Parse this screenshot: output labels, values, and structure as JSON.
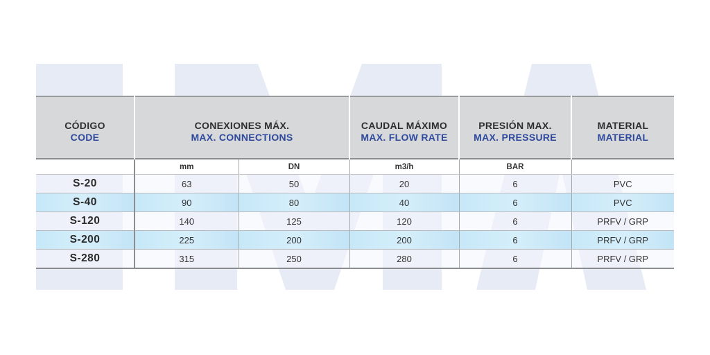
{
  "watermark": {
    "color": "#e6ebf5"
  },
  "header": {
    "codigo": {
      "es": "CÓDIGO",
      "en": "CODE"
    },
    "conexiones": {
      "es": "CONEXIONES MÁX.",
      "en": "MAX. CONNECTIONS"
    },
    "caudal": {
      "es": "CAUDAL MÁXIMO",
      "en": "MAX. FLOW RATE"
    },
    "presion": {
      "es": "PRESIÓN MAX.",
      "en": "MAX. PRESSURE"
    },
    "material": {
      "es": "MATERIAL",
      "en": "MATERIAL"
    }
  },
  "units": {
    "codigo": "",
    "mm": "mm",
    "dn": "DN",
    "flow": "m3/h",
    "pressure": "BAR",
    "material": ""
  },
  "rows": [
    {
      "code": "S-20",
      "mm": "63",
      "dn": "50",
      "flow": "20",
      "pressure": "6",
      "material": "PVC"
    },
    {
      "code": "S-40",
      "mm": "90",
      "dn": "80",
      "flow": "40",
      "pressure": "6",
      "material": "PVC"
    },
    {
      "code": "S-120",
      "mm": "140",
      "dn": "125",
      "flow": "120",
      "pressure": "6",
      "material": "PRFV / GRP"
    },
    {
      "code": "S-200",
      "mm": "225",
      "dn": "200",
      "flow": "200",
      "pressure": "6",
      "material": "PRFV / GRP"
    },
    {
      "code": "S-280",
      "mm": "315",
      "dn": "250",
      "flow": "280",
      "pressure": "6",
      "material": "PRFV / GRP"
    }
  ]
}
